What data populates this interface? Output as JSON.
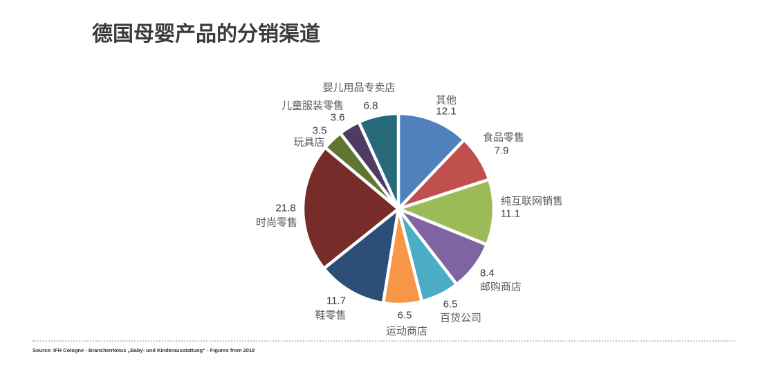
{
  "source": "Source: IFH Cologne - Branchenfokus „Baby- und Kinderausstattung“ - Figures from 2018",
  "chart_data": {
    "type": "pie",
    "title": "德国母婴产品的分销渠道",
    "categories": [
      "其他",
      "食品零售",
      "纯互联网销售",
      "邮购商店",
      "百货公司",
      "运动商店",
      "鞋零售",
      "时尚零售",
      "玩具店",
      "儿童服装零售",
      "婴儿用品专卖店"
    ],
    "values": [
      12.1,
      7.9,
      11.1,
      8.4,
      6.5,
      6.5,
      11.7,
      21.8,
      3.5,
      3.6,
      6.8
    ],
    "colors": [
      "#4F81BD",
      "#C0504D",
      "#9BBB59",
      "#8064A2",
      "#4BACC6",
      "#F79646",
      "#2C4D75",
      "#772C2A",
      "#5F7530",
      "#4D3B62",
      "#276A7C"
    ],
    "legend": "none"
  }
}
